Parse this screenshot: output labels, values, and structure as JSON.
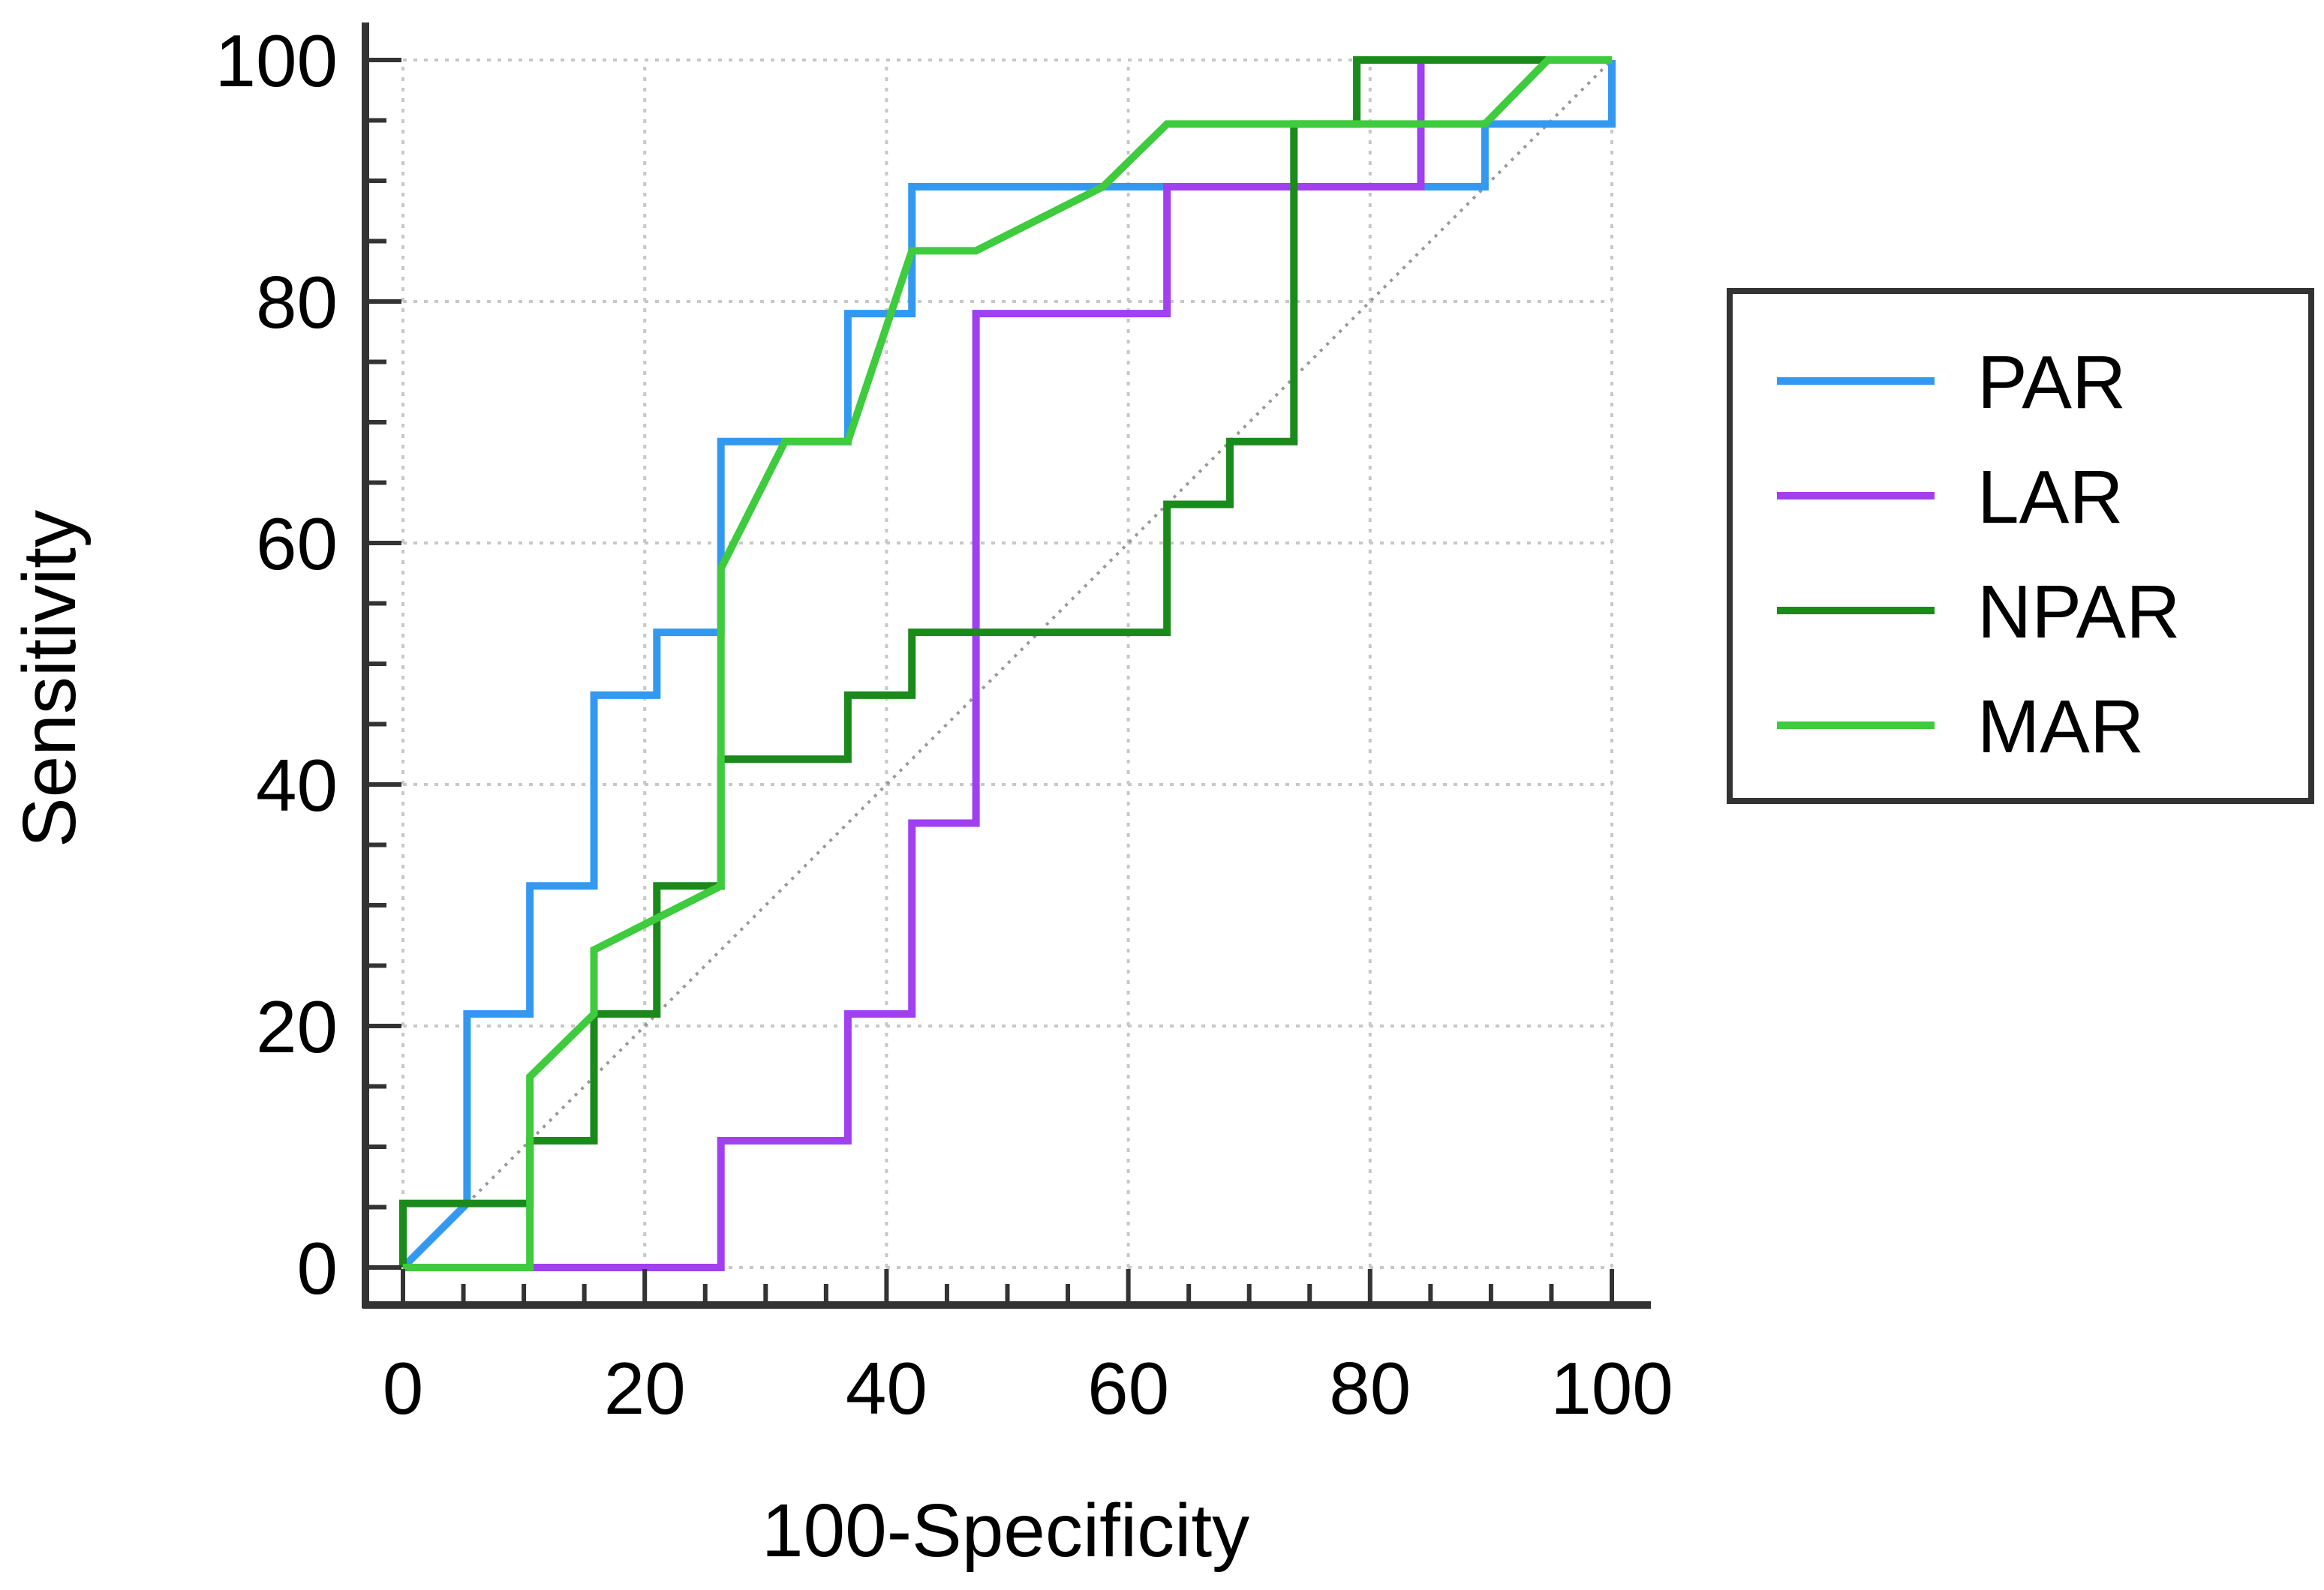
{
  "chart_data": {
    "type": "line",
    "chart_kind": "ROC curve",
    "xlabel": "100-Specificity",
    "ylabel": "Sensitivity",
    "xlim": [
      0,
      100
    ],
    "ylim": [
      0,
      100
    ],
    "xticks": [
      0,
      20,
      40,
      60,
      80,
      100
    ],
    "yticks": [
      0,
      20,
      40,
      60,
      80,
      100
    ],
    "grid": true,
    "legend_position": "right",
    "reference_line": {
      "x": [
        0,
        100
      ],
      "y": [
        0,
        100
      ],
      "style": "dotted",
      "color": "#999999"
    },
    "series": [
      {
        "name": "PAR",
        "color": "#3399f0",
        "x": [
          0,
          5.3,
          5.3,
          10.5,
          10.5,
          15.8,
          15.8,
          21,
          21,
          26.3,
          26.3,
          36.8,
          36.8,
          42.1,
          42.1,
          89.5,
          89.5,
          100,
          100
        ],
        "y": [
          0,
          5.3,
          21,
          21,
          31.6,
          31.6,
          47.4,
          47.4,
          52.6,
          52.6,
          68.4,
          68.4,
          79,
          79,
          89.5,
          89.5,
          94.7,
          94.7,
          100
        ]
      },
      {
        "name": "LAR",
        "color": "#a040f0",
        "x": [
          0,
          26.3,
          26.3,
          36.8,
          36.8,
          42.1,
          42.1,
          47.4,
          47.4,
          63.2,
          63.2,
          84.2,
          84.2,
          100
        ],
        "y": [
          0,
          0,
          10.5,
          10.5,
          21,
          21,
          36.8,
          36.8,
          79,
          79,
          89.5,
          89.5,
          100,
          100
        ]
      },
      {
        "name": "NPAR",
        "color": "#1a8a1a",
        "x": [
          0,
          0,
          10.5,
          10.5,
          15.8,
          15.8,
          21,
          21,
          26.3,
          26.3,
          36.8,
          36.8,
          42.1,
          42.1,
          63.2,
          63.2,
          68.4,
          68.4,
          73.7,
          73.7,
          78.9,
          78.9,
          100
        ],
        "y": [
          0,
          5.3,
          5.3,
          10.5,
          10.5,
          21,
          21,
          31.6,
          31.6,
          42.1,
          42.1,
          47.4,
          47.4,
          52.6,
          52.6,
          63.2,
          63.2,
          68.4,
          68.4,
          94.7,
          94.7,
          100,
          100
        ]
      },
      {
        "name": "MAR",
        "color": "#3ecb3e",
        "x": [
          0,
          10.5,
          10.5,
          15.8,
          15.8,
          26.3,
          26.3,
          31.6,
          36.8,
          42.1,
          47.4,
          57.9,
          63.2,
          89.5,
          94.7,
          100
        ],
        "y": [
          0,
          0,
          15.8,
          21,
          26.3,
          31.6,
          57.9,
          68.4,
          68.4,
          84.2,
          84.2,
          89.5,
          94.7,
          94.7,
          100,
          100
        ]
      }
    ]
  }
}
